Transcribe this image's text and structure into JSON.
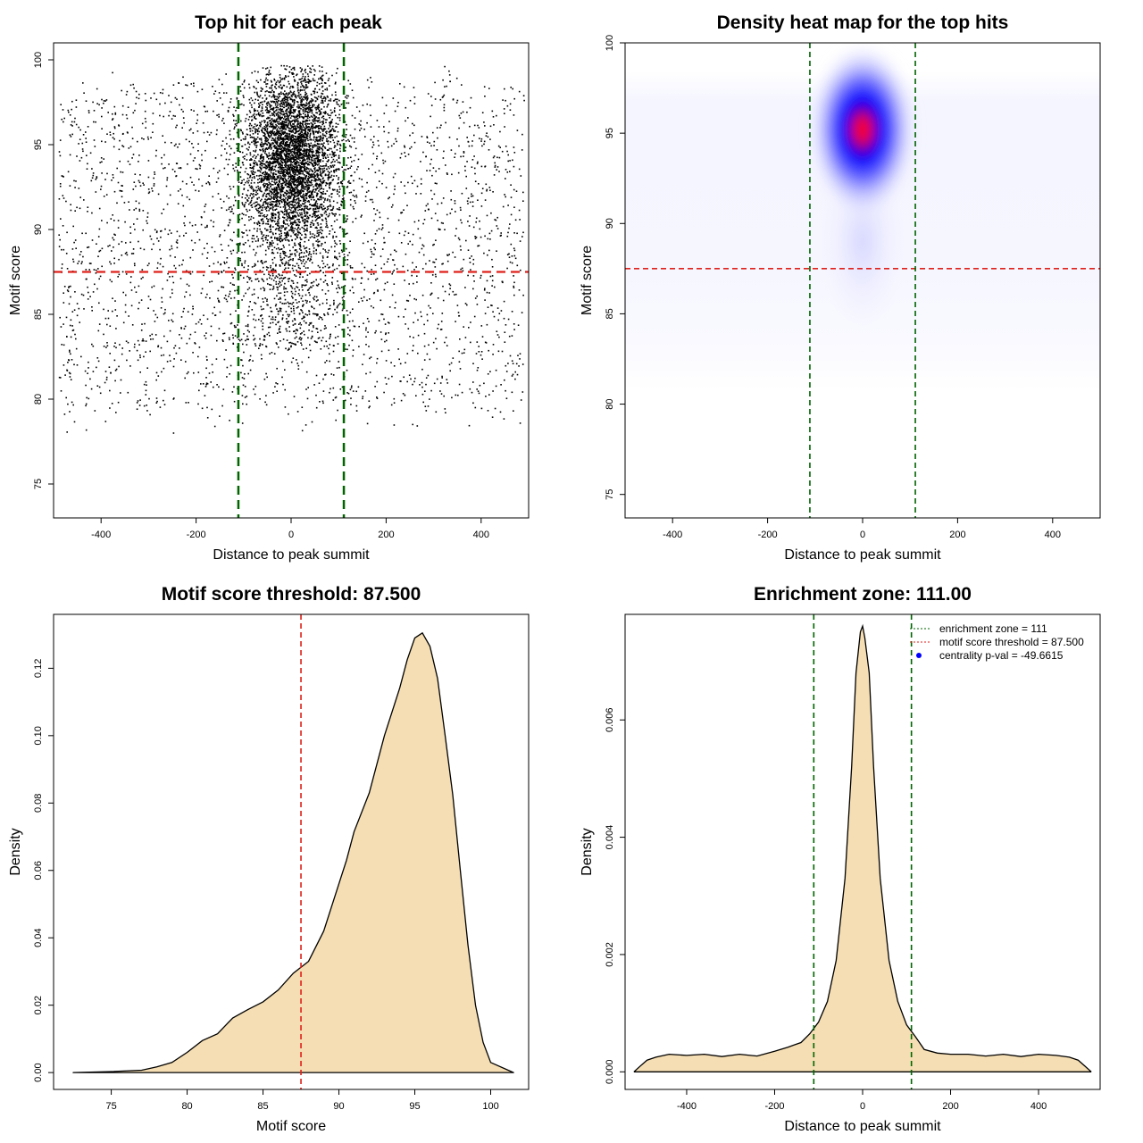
{
  "chart_data": [
    {
      "type": "scatter",
      "title": "Top hit for each peak",
      "xlabel": "Distance to peak summit",
      "ylabel": "Motif score",
      "xlim": [
        -500,
        500
      ],
      "ylim": [
        73,
        101
      ],
      "xticks": [
        "-400",
        "-200",
        "0",
        "200",
        "400"
      ],
      "yticks": [
        "75",
        "80",
        "85",
        "90",
        "95",
        "100"
      ],
      "threshold_y": 87.5,
      "enrichment_zone": 111,
      "grid": false,
      "point_color": "#000000",
      "threshold_color": "#e0201b",
      "zone_color": "#006400"
    },
    {
      "type": "heatmap",
      "title": "Density heat map for the top hits",
      "xlabel": "Distance to peak summit",
      "ylabel": "Motif score",
      "xlim": [
        -500,
        500
      ],
      "ylim": [
        73.7,
        100
      ],
      "xticks": [
        "-400",
        "-200",
        "0",
        "200",
        "400"
      ],
      "yticks": [
        "75",
        "80",
        "85",
        "90",
        "95",
        "100"
      ],
      "threshold_y": 87.5,
      "enrichment_zone": 111,
      "peak": [
        0,
        95.2
      ],
      "colors": [
        "#ffffff",
        "#0000ff",
        "#ff0000"
      ],
      "threshold_color": "#e0201b",
      "zone_color": "#006400"
    },
    {
      "type": "area",
      "title": "Motif score threshold: 87.500",
      "xlabel": "Motif score",
      "ylabel": "Density",
      "xlim": [
        71.2,
        102.5
      ],
      "ylim": [
        -0.005,
        0.136
      ],
      "xticks": [
        "75",
        "80",
        "85",
        "90",
        "95",
        "100"
      ],
      "yticks": [
        "0.00",
        "0.02",
        "0.04",
        "0.06",
        "0.08",
        "0.10",
        "0.12"
      ],
      "threshold_x": 87.5,
      "fill_color": "#f5deb3",
      "threshold_color": "#e0201b",
      "x": [
        72.5,
        75,
        77,
        78,
        79,
        80,
        81,
        82,
        83,
        84,
        85,
        86,
        87,
        88,
        89,
        90,
        90.5,
        91,
        92,
        93,
        94,
        94.5,
        95,
        95.5,
        96,
        96.5,
        97,
        97.5,
        98,
        98.5,
        99,
        99.5,
        100,
        101.5
      ],
      "y": [
        0,
        0.0003,
        0.0007,
        0.0017,
        0.003,
        0.006,
        0.0095,
        0.0115,
        0.0162,
        0.0187,
        0.021,
        0.0245,
        0.0295,
        0.033,
        0.042,
        0.056,
        0.063,
        0.0715,
        0.083,
        0.1,
        0.114,
        0.1225,
        0.129,
        0.1305,
        0.1265,
        0.117,
        0.1,
        0.0825,
        0.06,
        0.038,
        0.02,
        0.009,
        0.003,
        0
      ]
    },
    {
      "type": "area",
      "title": "Enrichment zone: 111.00",
      "xlabel": "Distance to peak summit",
      "ylabel": "Density",
      "xlim": [
        -540,
        540
      ],
      "ylim": [
        -0.0003,
        0.0078
      ],
      "xticks": [
        "-400",
        "-200",
        "0",
        "200",
        "400"
      ],
      "yticks": [
        "0.000",
        "0.002",
        "0.004",
        "0.006"
      ],
      "enrichment_zone": 111,
      "fill_color": "#f5deb3",
      "zone_color": "#006400",
      "x": [
        -520,
        -505,
        -490,
        -470,
        -440,
        -400,
        -360,
        -320,
        -280,
        -240,
        -200,
        -170,
        -140,
        -120,
        -100,
        -80,
        -60,
        -40,
        -25,
        -15,
        -5,
        0,
        5,
        15,
        25,
        40,
        60,
        80,
        100,
        120,
        140,
        170,
        200,
        240,
        280,
        320,
        360,
        400,
        440,
        470,
        490,
        505,
        520
      ],
      "y": [
        0,
        0.0001,
        0.0002,
        0.00025,
        0.0003,
        0.00028,
        0.0003,
        0.00026,
        0.0003,
        0.00027,
        0.00035,
        0.00042,
        0.0005,
        0.00065,
        0.00085,
        0.0012,
        0.0019,
        0.0033,
        0.0052,
        0.0068,
        0.0075,
        0.0076,
        0.0074,
        0.0068,
        0.0052,
        0.0033,
        0.0019,
        0.0012,
        0.0008,
        0.0006,
        0.00038,
        0.00032,
        0.0003,
        0.0003,
        0.00027,
        0.0003,
        0.00026,
        0.0003,
        0.00028,
        0.00025,
        0.0002,
        0.0001,
        0
      ],
      "legend": [
        {
          "label": "enrichment zone = 111",
          "symbol": "line",
          "color": "#006400"
        },
        {
          "label": "motif score threshold = 87.500",
          "symbol": "line",
          "color": "#e0201b"
        },
        {
          "label": "centrality p-val = -49.6615",
          "symbol": "point",
          "color": "#0000ff"
        }
      ],
      "legend_position": "top-right"
    }
  ]
}
